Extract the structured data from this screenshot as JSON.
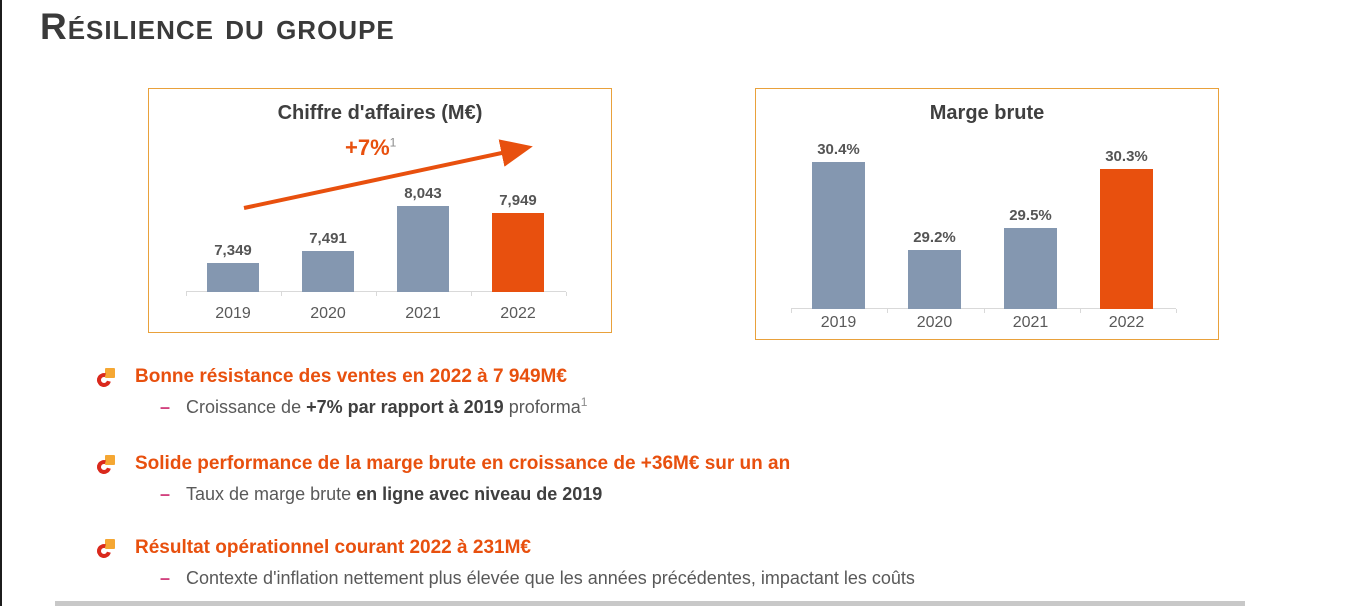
{
  "page": {
    "title": "Résilience du groupe"
  },
  "colors": {
    "accent": "#E8500E",
    "bar": "#8497B0",
    "panel_border": "#E9A13B",
    "title_text": "#3A3A3A",
    "body_text": "#595959",
    "dash_pink": "#D2417E",
    "axis": "#D9D9D9",
    "bullet_red": "#DA291C",
    "bullet_yellow": "#F5A733"
  },
  "chart_data": [
    {
      "type": "bar",
      "title": "Chiffre d'affaires (M€)",
      "categories": [
        "2019",
        "2020",
        "2021",
        "2022"
      ],
      "values": [
        7349,
        7491,
        8043,
        7949
      ],
      "value_labels": [
        "7,349",
        "7,491",
        "8,043",
        "7,949"
      ],
      "ylim": [
        7000,
        8100
      ],
      "highlight_index": 3,
      "bar_color": "#8497B0",
      "highlight_color": "#E8500E",
      "grid": false,
      "legend": "none",
      "annotation": {
        "type": "trend-arrow",
        "text": "+7%",
        "sup": "1"
      }
    },
    {
      "type": "bar",
      "title": "Marge brute",
      "categories": [
        "2019",
        "2020",
        "2021",
        "2022"
      ],
      "values": [
        30.4,
        29.2,
        29.5,
        30.3
      ],
      "value_labels": [
        "30.4%",
        "29.2%",
        "29.5%",
        "30.3%"
      ],
      "ylim": [
        28.4,
        30.4
      ],
      "highlight_index": 3,
      "bar_color": "#8497B0",
      "highlight_color": "#E8500E",
      "grid": false,
      "legend": "none"
    }
  ],
  "bullets": [
    {
      "heading": "Bonne résistance des ventes en 2022 à 7 949M€",
      "dash": "–",
      "sub_parts": [
        {
          "text": "Croissance de ",
          "bold": false
        },
        {
          "text": "+7% par rapport à 2019",
          "bold": true
        },
        {
          "text": " proforma",
          "bold": false
        }
      ],
      "sub_sup": "1"
    },
    {
      "heading": "Solide performance de la marge brute en croissance de +36M€ sur un an",
      "dash": "–",
      "sub_parts": [
        {
          "text": "Taux de marge brute ",
          "bold": false
        },
        {
          "text": "en ligne avec niveau de 2019",
          "bold": true
        }
      ]
    },
    {
      "heading": "Résultat opérationnel courant 2022 à 231M€",
      "dash": "–",
      "sub_parts": [
        {
          "text": "Contexte d'inflation nettement plus élevée que les années précédentes, impactant les coûts",
          "bold": false
        }
      ]
    }
  ]
}
